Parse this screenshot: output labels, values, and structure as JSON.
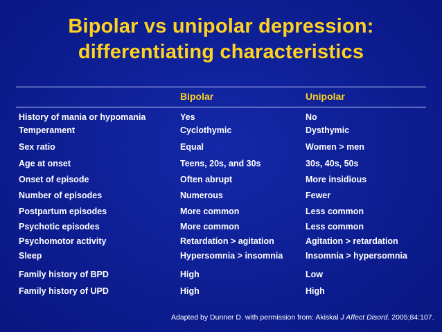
{
  "title": {
    "line1": "Bipolar vs unipolar depression:",
    "line2": "differentiating characteristics"
  },
  "columns": [
    "",
    "Bipolar",
    "Unipolar"
  ],
  "rows": [
    [
      "History of mania or hypomania",
      "Yes",
      "No"
    ],
    [
      "Temperament",
      "Cyclothymic",
      "Dysthymic"
    ],
    [
      "Sex ratio",
      "Equal",
      "Women > men"
    ],
    [
      "Age at onset",
      "Teens, 20s, and 30s",
      "30s, 40s, 50s"
    ],
    [
      "Onset of episode",
      "Often abrupt",
      "More insidious"
    ],
    [
      "Number of episodes",
      "Numerous",
      "Fewer"
    ],
    [
      "Postpartum episodes",
      "More common",
      "Less common"
    ],
    [
      "Psychotic episodes",
      "More common",
      "Less common"
    ],
    [
      "Psychomotor activity",
      "Retardation > agitation",
      "Agitation > retardation"
    ],
    [
      "Sleep",
      "Hypersomnia > insomnia",
      "Insomnia > hypersomnia"
    ],
    [
      "Family history of BPD",
      "High",
      "Low"
    ],
    [
      "Family history of UPD",
      "High",
      "High"
    ]
  ],
  "footnote": {
    "prefix": "Adapted by Dunner D. with permission from: Akiskal ",
    "journal": "J Affect Disord",
    "suffix": ". 2005;84:107."
  },
  "colors": {
    "background": "#0d1e92",
    "title": "#ffd21f",
    "text": "#ffffff"
  }
}
